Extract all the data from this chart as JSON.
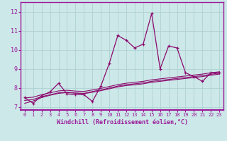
{
  "x": [
    0,
    1,
    2,
    3,
    4,
    5,
    6,
    7,
    8,
    9,
    10,
    11,
    12,
    13,
    14,
    15,
    16,
    17,
    18,
    19,
    20,
    21,
    22,
    23
  ],
  "y_main": [
    7.5,
    7.2,
    7.6,
    7.8,
    8.25,
    7.7,
    7.65,
    7.65,
    7.3,
    8.1,
    9.3,
    10.75,
    10.5,
    10.1,
    10.3,
    11.9,
    9.0,
    10.2,
    10.1,
    8.8,
    8.6,
    8.35,
    8.8,
    8.8
  ],
  "y_line2": [
    7.35,
    7.4,
    7.55,
    7.65,
    7.75,
    7.78,
    7.74,
    7.72,
    7.82,
    7.9,
    8.0,
    8.1,
    8.18,
    8.22,
    8.27,
    8.35,
    8.4,
    8.45,
    8.5,
    8.55,
    8.6,
    8.65,
    8.72,
    8.78
  ],
  "y_line3": [
    7.2,
    7.32,
    7.5,
    7.62,
    7.72,
    7.76,
    7.73,
    7.7,
    7.78,
    7.86,
    7.96,
    8.06,
    8.13,
    8.17,
    8.22,
    8.3,
    8.35,
    8.4,
    8.45,
    8.5,
    8.55,
    8.6,
    8.67,
    8.73
  ],
  "y_line4": [
    7.48,
    7.52,
    7.65,
    7.75,
    7.85,
    7.88,
    7.84,
    7.82,
    7.9,
    7.98,
    8.08,
    8.18,
    8.25,
    8.3,
    8.35,
    8.43,
    8.48,
    8.53,
    8.58,
    8.63,
    8.68,
    8.73,
    8.8,
    8.85
  ],
  "color_main": "#8b0a6e",
  "bg_color": "#cce8e8",
  "grid_color": "#aacece",
  "border_color": "#9b1a9b",
  "tick_label_color": "#9b1a9b",
  "xlabel": "Windchill (Refroidissement éolien,°C)",
  "xlim": [
    -0.5,
    23.5
  ],
  "ylim": [
    6.85,
    12.5
  ],
  "yticks": [
    7,
    8,
    9,
    10,
    11,
    12
  ],
  "xticks": [
    0,
    1,
    2,
    3,
    4,
    5,
    6,
    7,
    8,
    9,
    10,
    11,
    12,
    13,
    14,
    15,
    16,
    17,
    18,
    19,
    20,
    21,
    22,
    23
  ]
}
